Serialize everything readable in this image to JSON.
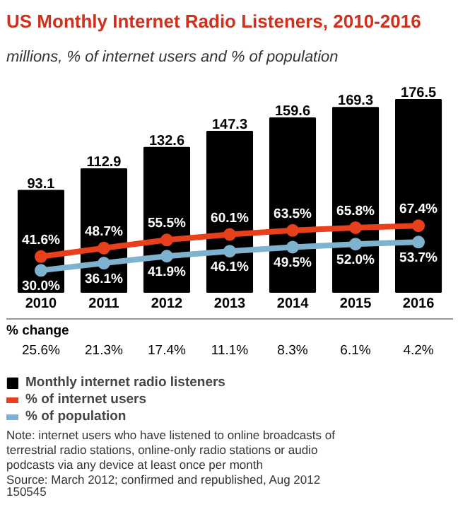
{
  "chart_data": {
    "type": "bar",
    "title": "US Monthly Internet Radio Listeners, 2010-2016",
    "subtitle": "millions, % of internet users and % of population",
    "categories": [
      "2010",
      "2011",
      "2012",
      "2013",
      "2014",
      "2015",
      "2016"
    ],
    "series": [
      {
        "name": "Monthly internet radio listeners",
        "color": "#000000",
        "values": [
          93.1,
          112.9,
          132.6,
          147.3,
          159.6,
          169.3,
          176.5
        ]
      },
      {
        "name": "% of internet users",
        "type": "line",
        "axis": "y2",
        "color": "#e8401c",
        "values": [
          41.6,
          48.7,
          55.5,
          60.1,
          63.5,
          65.8,
          67.4
        ],
        "value_labels": [
          "41.6%",
          "48.7%",
          "55.5%",
          "60.1%",
          "63.5%",
          "65.8%",
          "67.4%"
        ]
      },
      {
        "name": "% of population",
        "type": "line",
        "axis": "y2",
        "color": "#7fb2cf",
        "values": [
          30.0,
          36.1,
          41.9,
          46.1,
          49.5,
          52.0,
          53.7
        ],
        "value_labels": [
          "30.0%",
          "36.1%",
          "41.9%",
          "46.1%",
          "49.5%",
          "52.0%",
          "53.7%"
        ]
      }
    ],
    "tick_labels": "x",
    "data_labels": true,
    "marker": "circle",
    "legend": "bottom",
    "annotations": [
      "% change",
      "25.6%",
      "21.3%",
      "17.4%",
      "11.1%",
      "8.3%",
      "6.1%",
      "4.2%",
      "Note: internet users who have listened to online broadcasts of terrestrial radio stations, online-only radio stations or audio podcasts via any device at least once per month",
      "Source: March 2012; confirmed and republished, Aug 2012",
      "150545"
    ]
  }
}
